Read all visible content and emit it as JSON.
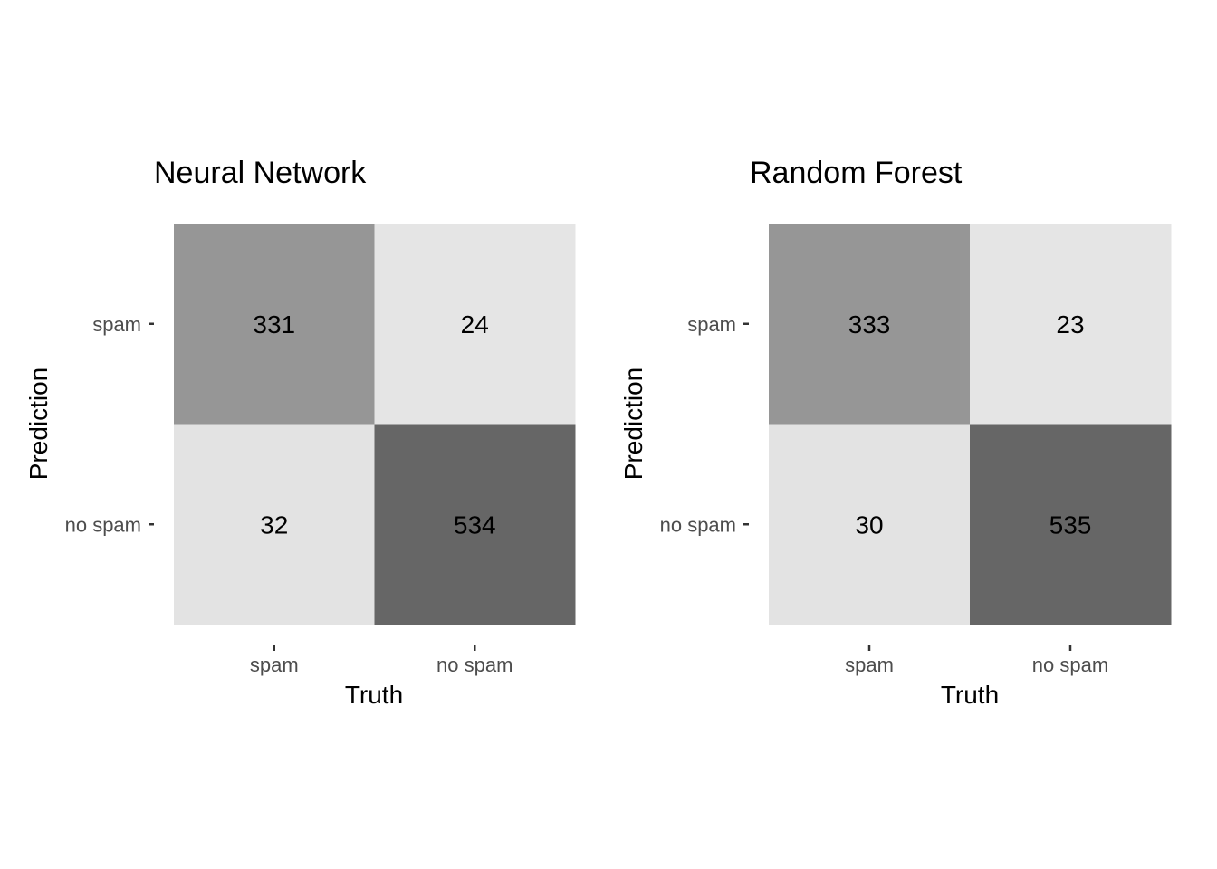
{
  "chart_data": [
    {
      "type": "heatmap",
      "title": "Neural Network",
      "xlabel": "Truth",
      "ylabel": "Prediction",
      "x_categories": [
        "spam",
        "no spam"
      ],
      "y_categories": [
        "spam",
        "no spam"
      ],
      "values": [
        [
          331,
          24
        ],
        [
          32,
          534
        ]
      ],
      "fill_colors": [
        [
          "#969696",
          "#e5e5e5"
        ],
        [
          "#e3e3e3",
          "#666666"
        ]
      ]
    },
    {
      "type": "heatmap",
      "title": "Random Forest",
      "xlabel": "Truth",
      "ylabel": "Prediction",
      "x_categories": [
        "spam",
        "no spam"
      ],
      "y_categories": [
        "spam",
        "no spam"
      ],
      "values": [
        [
          333,
          23
        ],
        [
          30,
          535
        ]
      ],
      "fill_colors": [
        [
          "#969696",
          "#e5e5e5"
        ],
        [
          "#e3e3e3",
          "#666666"
        ]
      ]
    }
  ]
}
